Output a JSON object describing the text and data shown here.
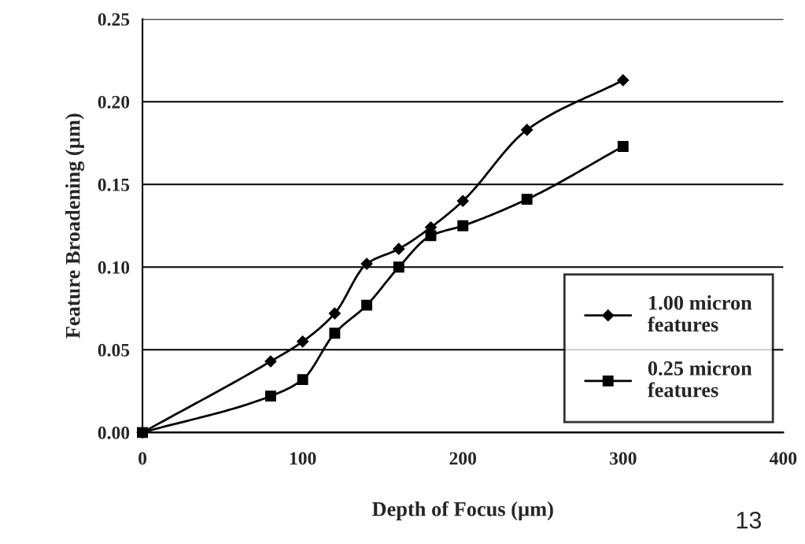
{
  "chart_data": {
    "type": "line",
    "xlabel": "Depth of Focus (µm)",
    "ylabel": "Feature Broadening (µm)",
    "xlim": [
      0,
      400
    ],
    "xticks": [
      0,
      100,
      200,
      300,
      400
    ],
    "ylim": [
      0,
      0.25
    ],
    "yticks": [
      {
        "value": 0,
        "label": "0.00"
      },
      {
        "value": 0.05,
        "label": "0.05"
      },
      {
        "value": 0.1,
        "label": "0.10"
      },
      {
        "value": 0.15,
        "label": "0.15"
      },
      {
        "value": 0.2,
        "label": "0.20"
      },
      {
        "value": 0.25,
        "label": "0.25"
      }
    ],
    "grid": "y",
    "legend": "bottom right",
    "line_style": "solid",
    "series": [
      {
        "name": "1.00 micron\nfeatures",
        "color": "#000000",
        "marker": "diamond",
        "x": [
          0,
          80,
          100,
          120,
          140,
          160,
          180,
          200,
          240,
          300
        ],
        "values": [
          0,
          0.043,
          0.055,
          0.072,
          0.102,
          0.111,
          0.124,
          0.14,
          0.183,
          0.213
        ]
      },
      {
        "name": "0.25 micron\nfeatures",
        "color": "#000000",
        "marker": "square",
        "x": [
          0,
          80,
          100,
          120,
          140,
          160,
          180,
          200,
          240,
          300
        ],
        "values": [
          0,
          0.022,
          0.032,
          0.06,
          0.077,
          0.1,
          0.119,
          0.125,
          0.141,
          0.173
        ]
      }
    ],
    "annotations": [
      "13"
    ]
  }
}
